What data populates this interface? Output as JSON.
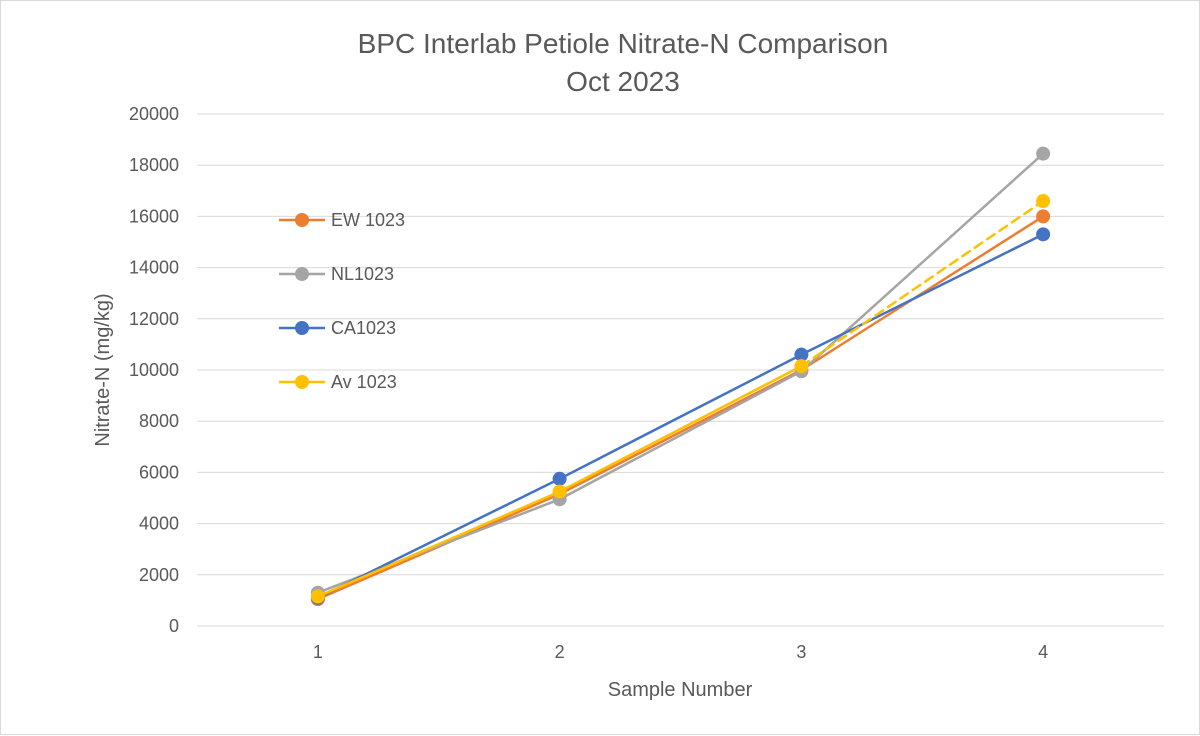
{
  "chart_data": {
    "type": "line",
    "title_line1": "BPC Interlab Petiole Nitrate-N Comparison",
    "title_line2": "Oct 2023",
    "xlabel": "Sample Number",
    "ylabel": "Nitrate-N (mg/kg)",
    "categories": [
      "1",
      "2",
      "3",
      "4"
    ],
    "ylim": [
      0,
      20000
    ],
    "yticks": [
      0,
      2000,
      4000,
      6000,
      8000,
      10000,
      12000,
      14000,
      16000,
      18000,
      20000
    ],
    "grid": true,
    "legend_position": "left",
    "series": [
      {
        "name": "EW 1023",
        "color": "#ED7D31",
        "values": [
          1050,
          5150,
          10000,
          16000
        ],
        "dashed_last": false
      },
      {
        "name": "NL1023",
        "color": "#A5A5A5",
        "values": [
          1300,
          4950,
          9950,
          18450
        ],
        "dashed_last": false
      },
      {
        "name": "CA1023",
        "color": "#4472C4",
        "values": [
          1100,
          5750,
          10600,
          15300
        ],
        "dashed_last": false
      },
      {
        "name": "Av 1023",
        "color": "#FFC000",
        "values": [
          1150,
          5250,
          10150,
          16600
        ],
        "dashed_last": true
      }
    ]
  }
}
